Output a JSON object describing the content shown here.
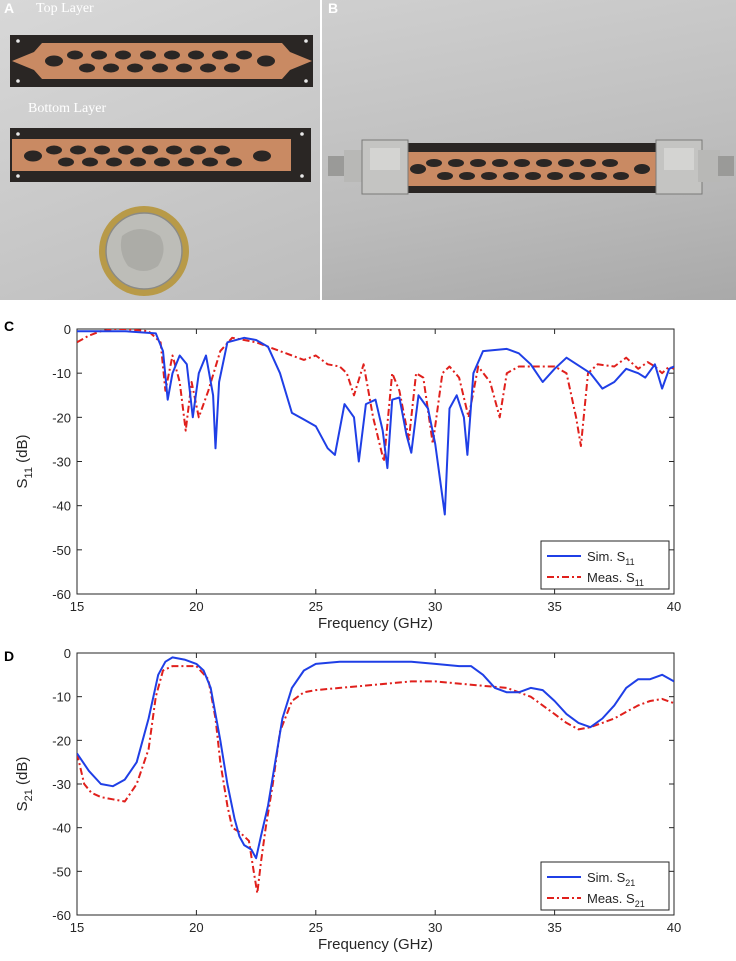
{
  "panels": {
    "a": {
      "letter": "A",
      "top_label": "Top Layer",
      "bottom_label": "Bottom Layer"
    },
    "b": {
      "letter": "B"
    },
    "c": {
      "letter": "C"
    },
    "d": {
      "letter": "D"
    }
  },
  "colors": {
    "sim": "#1f3fe6",
    "meas": "#e0201c",
    "copper": "#c98a63",
    "substrate": "#2a2624"
  },
  "chart_data": [
    {
      "type": "line",
      "panel": "C",
      "xlabel": "Frequency (GHz)",
      "ylabel": "S11 (dB)",
      "ylabel_main": "S",
      "ylabel_sub": "11",
      "ylabel_unit": "(dB)",
      "xlim": [
        15,
        40
      ],
      "ylim": [
        -60,
        0
      ],
      "xticks": [
        15,
        20,
        25,
        30,
        35,
        40
      ],
      "yticks": [
        0,
        -10,
        -20,
        -30,
        -40,
        -50,
        -60
      ],
      "grid": false,
      "legend_position": "bottom-right",
      "series": [
        {
          "name": "Sim. S11",
          "legend_main": "Sim. S",
          "legend_sub": "11",
          "color": "#1f3fe6",
          "style": "solid",
          "x": [
            15,
            17,
            18.3,
            18.6,
            18.8,
            19.0,
            19.3,
            19.6,
            19.85,
            20.1,
            20.4,
            20.7,
            20.8,
            20.95,
            21.3,
            22.0,
            22.5,
            23.0,
            23.5,
            24.0,
            24.5,
            25.0,
            25.5,
            25.8,
            26.2,
            26.6,
            26.8,
            27.1,
            27.5,
            27.8,
            28.0,
            28.2,
            28.5,
            28.8,
            29.0,
            29.3,
            29.7,
            30.0,
            30.4,
            30.6,
            30.9,
            31.2,
            31.35,
            31.6,
            32.0,
            33.0,
            33.5,
            34.0,
            34.5,
            35.0,
            35.5,
            36.5,
            37.0,
            37.5,
            38.0,
            38.5,
            38.8,
            39.2,
            39.5,
            39.8,
            40.0
          ],
          "y": [
            -0.5,
            -0.5,
            -1.0,
            -5.0,
            -16.0,
            -10.0,
            -6.0,
            -8.0,
            -20.0,
            -10.0,
            -6.0,
            -15.0,
            -27.0,
            -12.0,
            -3.0,
            -2.0,
            -2.5,
            -4.0,
            -10.0,
            -19.0,
            -20.5,
            -22.0,
            -27.0,
            -28.5,
            -17.0,
            -20.0,
            -30.0,
            -17.0,
            -16.0,
            -23.0,
            -31.5,
            -16.0,
            -15.5,
            -24.0,
            -28.0,
            -15.0,
            -18.0,
            -26.0,
            -42.0,
            -18.0,
            -15.0,
            -20.0,
            -28.5,
            -10.0,
            -5.0,
            -4.5,
            -5.5,
            -8.0,
            -12.0,
            -9.0,
            -6.5,
            -10.0,
            -13.5,
            -12.0,
            -9.0,
            -10.0,
            -11.0,
            -8.0,
            -13.5,
            -9.0,
            -8.5
          ]
        },
        {
          "name": "Meas. S11",
          "legend_main": "Meas. S",
          "legend_sub": "11",
          "color": "#e0201c",
          "style": "dashdot",
          "x": [
            15,
            15.5,
            16.0,
            16.5,
            17.0,
            18.0,
            18.5,
            18.7,
            19.0,
            19.3,
            19.55,
            19.8,
            20.1,
            20.5,
            21.0,
            21.5,
            22.0,
            22.5,
            23.0,
            23.5,
            24.0,
            24.5,
            25.0,
            25.5,
            26.0,
            26.3,
            26.6,
            27.0,
            27.4,
            27.85,
            28.2,
            28.5,
            28.9,
            29.2,
            29.5,
            29.9,
            30.3,
            30.6,
            31.0,
            31.4,
            31.8,
            32.3,
            32.7,
            33.0,
            33.5,
            34.0,
            34.5,
            35.0,
            35.5,
            35.9,
            36.1,
            36.4,
            36.8,
            37.5,
            38.0,
            38.5,
            38.9,
            39.2,
            39.5,
            39.8,
            40.0
          ],
          "y": [
            -3.0,
            -1.5,
            -0.5,
            0.0,
            0.0,
            -0.5,
            -3.0,
            -14.0,
            -6.0,
            -12.0,
            -23.0,
            -12.0,
            -20.0,
            -14.0,
            -5.0,
            -2.0,
            -2.5,
            -3.0,
            -4.0,
            -5.0,
            -6.0,
            -7.0,
            -6.0,
            -8.0,
            -8.5,
            -10.0,
            -15.0,
            -8.0,
            -20.0,
            -30.0,
            -10.0,
            -14.0,
            -25.0,
            -10.0,
            -11.0,
            -26.0,
            -10.0,
            -8.5,
            -11.0,
            -20.0,
            -8.5,
            -12.0,
            -20.0,
            -10.0,
            -8.5,
            -8.5,
            -8.5,
            -8.5,
            -10.0,
            -20.0,
            -26.5,
            -10.0,
            -8.0,
            -8.5,
            -6.5,
            -9.0,
            -7.5,
            -8.5,
            -10.0,
            -8.5,
            -9.0
          ]
        }
      ]
    },
    {
      "type": "line",
      "panel": "D",
      "xlabel": "Frequency (GHz)",
      "ylabel": "S21 (dB)",
      "ylabel_main": "S",
      "ylabel_sub": "21",
      "ylabel_unit": "(dB)",
      "xlim": [
        15,
        40
      ],
      "ylim": [
        -60,
        0
      ],
      "xticks": [
        15,
        20,
        25,
        30,
        35,
        40
      ],
      "yticks": [
        0,
        -10,
        -20,
        -30,
        -40,
        -50,
        -60
      ],
      "grid": false,
      "legend_position": "bottom-right",
      "series": [
        {
          "name": "Sim. S21",
          "legend_main": "Sim. S",
          "legend_sub": "21",
          "color": "#1f3fe6",
          "style": "solid",
          "x": [
            15,
            15.5,
            16.0,
            16.5,
            17.0,
            17.5,
            18.0,
            18.4,
            18.7,
            19.0,
            19.5,
            20.0,
            20.3,
            20.6,
            21.0,
            21.3,
            21.6,
            21.8,
            22.0,
            22.3,
            22.5,
            22.7,
            23.0,
            23.3,
            23.6,
            24.0,
            24.5,
            25.0,
            26.0,
            27.0,
            28.0,
            29.0,
            30.0,
            31.0,
            31.5,
            32.0,
            32.5,
            33.0,
            33.5,
            34.0,
            34.5,
            35.0,
            35.5,
            36.0,
            36.5,
            37.0,
            37.5,
            38.0,
            38.5,
            39.0,
            39.5,
            40.0
          ],
          "y": [
            -23.0,
            -27.0,
            -30.0,
            -30.5,
            -29.0,
            -25.0,
            -15.0,
            -5.0,
            -2.0,
            -1.0,
            -1.5,
            -2.5,
            -4.0,
            -8.0,
            -20.0,
            -30.0,
            -38.0,
            -42.0,
            -44.0,
            -45.0,
            -47.0,
            -42.0,
            -35.0,
            -25.0,
            -15.0,
            -8.0,
            -4.0,
            -2.5,
            -2.0,
            -2.0,
            -2.0,
            -2.0,
            -2.5,
            -3.0,
            -3.0,
            -5.0,
            -8.0,
            -9.0,
            -9.0,
            -8.0,
            -8.5,
            -11.0,
            -14.0,
            -16.0,
            -17.0,
            -15.0,
            -12.0,
            -8.0,
            -6.0,
            -6.0,
            -5.0,
            -6.5
          ]
        },
        {
          "name": "Meas. S21",
          "legend_main": "Meas. S",
          "legend_sub": "21",
          "color": "#e0201c",
          "style": "dashdot",
          "x": [
            15,
            15.3,
            15.6,
            16.0,
            16.5,
            17.0,
            17.5,
            18.0,
            18.3,
            18.6,
            19.0,
            19.5,
            20.0,
            20.5,
            20.8,
            21.0,
            21.3,
            21.5,
            21.8,
            22.0,
            22.2,
            22.4,
            22.55,
            22.7,
            22.9,
            23.2,
            23.5,
            24.0,
            24.5,
            25.0,
            26.0,
            27.0,
            28.0,
            29.0,
            30.0,
            31.0,
            32.0,
            33.0,
            34.0,
            34.5,
            35.0,
            35.5,
            36.0,
            36.5,
            37.0,
            37.5,
            38.0,
            38.5,
            39.0,
            39.5,
            40.0
          ],
          "y": [
            -23.0,
            -30.0,
            -32.0,
            -33.0,
            -33.5,
            -34.0,
            -30.0,
            -22.0,
            -10.0,
            -4.0,
            -3.0,
            -3.0,
            -3.0,
            -6.0,
            -15.0,
            -25.0,
            -35.0,
            -40.0,
            -41.0,
            -42.0,
            -43.0,
            -50.0,
            -55.0,
            -48.0,
            -40.0,
            -30.0,
            -18.0,
            -11.0,
            -9.0,
            -8.5,
            -8.0,
            -7.5,
            -7.0,
            -6.5,
            -6.5,
            -7.0,
            -7.5,
            -8.0,
            -10.0,
            -12.0,
            -14.0,
            -16.0,
            -17.5,
            -17.0,
            -16.0,
            -15.0,
            -13.5,
            -12.0,
            -11.0,
            -10.5,
            -11.5
          ]
        }
      ]
    }
  ]
}
